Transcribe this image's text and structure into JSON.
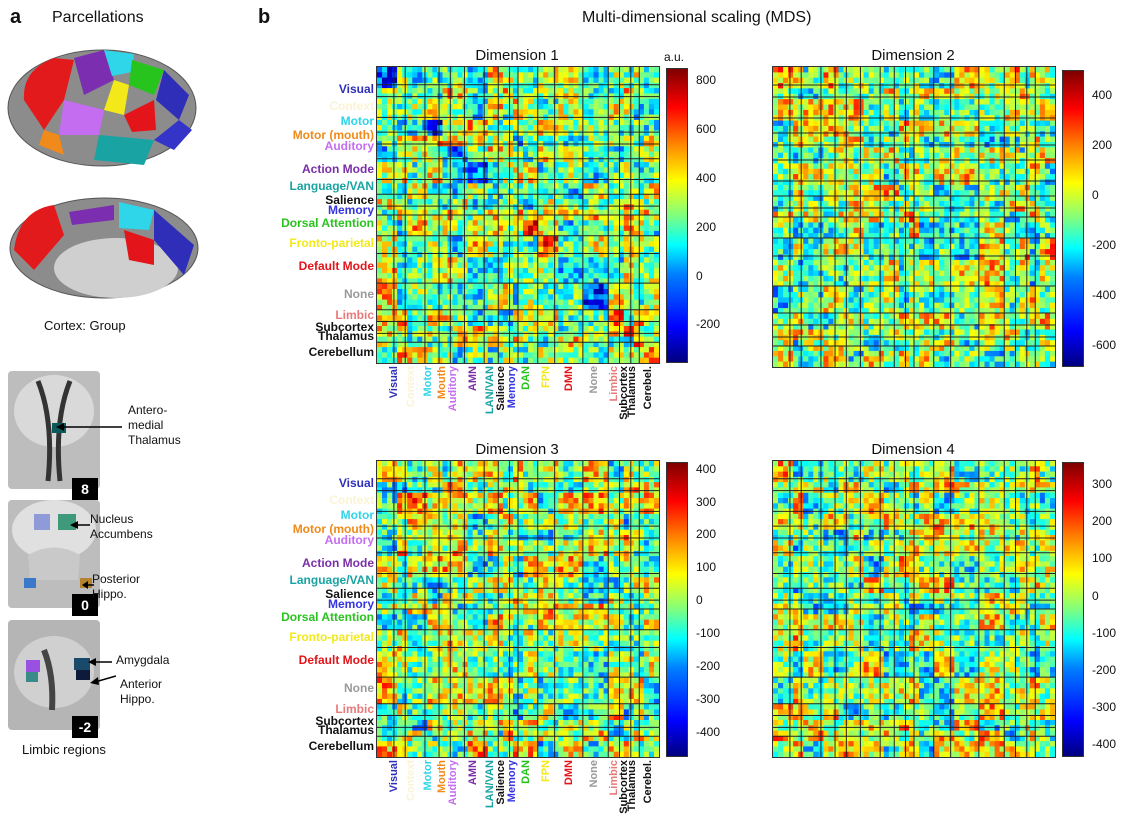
{
  "panel_a": {
    "letter": "a",
    "title": "Parcellations",
    "cortex_caption": "Cortex: Group",
    "limbic_caption": "Limbic regions",
    "slices": [
      {
        "number": "8",
        "labels": [
          "Antero-\nmedial\nThalamus"
        ]
      },
      {
        "number": "0",
        "labels": [
          "Nucleus\nAccumbens",
          "Posterior\nHippo."
        ]
      },
      {
        "number": "-2",
        "labels": [
          "Amygdala",
          "Anterior\nHippo."
        ]
      }
    ]
  },
  "panel_b": {
    "letter": "b",
    "title": "Multi-dimensional scaling (MDS)",
    "unit": "a.u."
  },
  "row_labels": [
    {
      "text": "Visual",
      "color": "#2e2eb8"
    },
    {
      "text": "Context",
      "color": "#fbf3d5"
    },
    {
      "text": "Motor",
      "color": "#2fd5e8"
    },
    {
      "text": "Motor (mouth)",
      "color": "#f08a1a"
    },
    {
      "text": "Auditory",
      "color": "#c56df0"
    },
    {
      "text": "Action Mode",
      "color": "#7a2ea8"
    },
    {
      "text": "Language/VAN",
      "color": "#1aa3a3"
    },
    {
      "text": "Salience",
      "color": "#111111"
    },
    {
      "text": "Memory",
      "color": "#3434e0"
    },
    {
      "text": "Dorsal Attention",
      "color": "#27c41e"
    },
    {
      "text": "Fronto-parietal",
      "color": "#f2e81a"
    },
    {
      "text": "Default Mode",
      "color": "#e3141a"
    },
    {
      "text": "None",
      "color": "#9a9a9a"
    },
    {
      "text": "Limbic",
      "color": "#e87a7a"
    },
    {
      "text": "Subcortex",
      "color": "#111111"
    },
    {
      "text": "Thalamus",
      "color": "#111111"
    },
    {
      "text": "Cerebellum",
      "color": "#111111"
    }
  ],
  "col_labels": [
    {
      "text": "Visual",
      "color": "#2e2eb8"
    },
    {
      "text": "Context",
      "color": "#fbf3d5"
    },
    {
      "text": "Motor",
      "color": "#2fd5e8"
    },
    {
      "text": "Mouth",
      "color": "#f08a1a"
    },
    {
      "text": "Auditory",
      "color": "#c56df0"
    },
    {
      "text": "AMN",
      "color": "#7a2ea8"
    },
    {
      "text": "LAN/VAN",
      "color": "#1aa3a3"
    },
    {
      "text": "Salience",
      "color": "#111111"
    },
    {
      "text": "Memory",
      "color": "#3434e0"
    },
    {
      "text": "DAN",
      "color": "#27c41e"
    },
    {
      "text": "FPN",
      "color": "#f2e81a"
    },
    {
      "text": "DMN",
      "color": "#e3141a"
    },
    {
      "text": "None",
      "color": "#9a9a9a"
    },
    {
      "text": "Limbic",
      "color": "#e87a7a"
    },
    {
      "text": "Subcortex",
      "color": "#111111"
    },
    {
      "text": "Thalamus",
      "color": "#111111"
    },
    {
      "text": "Cerebel.",
      "color": "#111111"
    }
  ],
  "chart_data": [
    {
      "type": "heatmap",
      "title": "Dimension 1",
      "colorbar_ticks": [
        "800",
        "600",
        "400",
        "200",
        "0",
        "-200"
      ],
      "colorbar_range": [
        -350,
        850
      ]
    },
    {
      "type": "heatmap",
      "title": "Dimension 2",
      "colorbar_ticks": [
        "400",
        "200",
        "0",
        "-200",
        "-400",
        "-600"
      ],
      "colorbar_range": [
        -680,
        500
      ]
    },
    {
      "type": "heatmap",
      "title": "Dimension 3",
      "colorbar_ticks": [
        "400",
        "300",
        "200",
        "100",
        "0",
        "-100",
        "-200",
        "-300",
        "-400"
      ],
      "colorbar_range": [
        -470,
        420
      ]
    },
    {
      "type": "heatmap",
      "title": "Dimension 4",
      "colorbar_ticks": [
        "300",
        "200",
        "100",
        "0",
        "-100",
        "-200",
        "-300",
        "-400"
      ],
      "colorbar_range": [
        -430,
        360
      ]
    }
  ]
}
